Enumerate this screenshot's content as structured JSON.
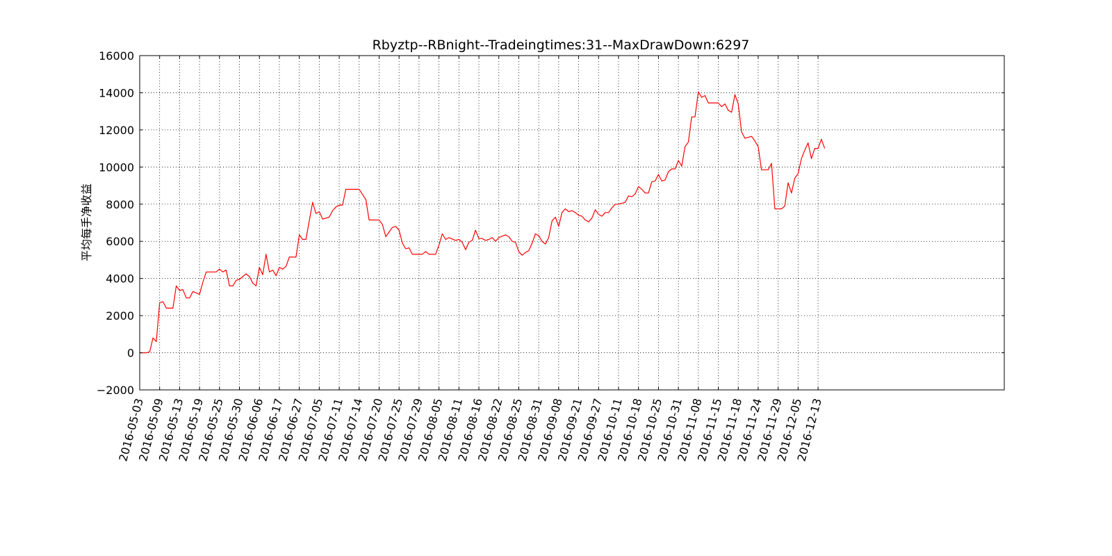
{
  "chart_data": {
    "type": "line",
    "title": "Rbyztp--RBnight--Tradeingtimes:31--MaxDrawDown:6297",
    "xlabel": "",
    "ylabel": "平均每手净收益",
    "ylim": [
      -2000,
      16000
    ],
    "yticks": [
      -2000,
      0,
      2000,
      4000,
      6000,
      8000,
      10000,
      12000,
      14000,
      16000
    ],
    "ytick_labels": [
      "−2000",
      "0",
      "2000",
      "4000",
      "6000",
      "8000",
      "10000",
      "12000",
      "14000",
      "16000"
    ],
    "x_count": 260,
    "xlim": [
      0,
      260
    ],
    "xtick_labels": [
      "2016-05-03",
      "2016-05-09",
      "2016-05-13",
      "2016-05-19",
      "2016-05-25",
      "2016-05-30",
      "2016-06-06",
      "2016-06-17",
      "2016-06-27",
      "2016-07-05",
      "2016-07-11",
      "2016-07-14",
      "2016-07-20",
      "2016-07-25",
      "2016-07-29",
      "2016-08-05",
      "2016-08-11",
      "2016-08-16",
      "2016-08-22",
      "2016-08-25",
      "2016-08-31",
      "2016-09-08",
      "2016-09-21",
      "2016-09-27",
      "2016-10-11",
      "2016-10-18",
      "2016-10-25",
      "2016-10-31",
      "2016-11-08",
      "2016-11-15",
      "2016-11-18",
      "2016-11-24",
      "2016-11-29",
      "2016-12-05",
      "2016-12-13"
    ],
    "grid": true,
    "color": "#ff0000",
    "series": [
      {
        "points": [
          [
            0,
            0
          ],
          [
            2,
            0
          ],
          [
            3,
            50
          ],
          [
            4,
            800
          ],
          [
            5,
            600
          ],
          [
            6,
            2700
          ],
          [
            7,
            2750
          ],
          [
            8,
            2400
          ],
          [
            10,
            2400
          ],
          [
            11,
            3600
          ],
          [
            12,
            3350
          ],
          [
            13,
            3400
          ],
          [
            14,
            2950
          ],
          [
            15,
            2950
          ],
          [
            16,
            3300
          ],
          [
            18,
            3150
          ],
          [
            19,
            3800
          ],
          [
            20,
            4350
          ],
          [
            23,
            4350
          ],
          [
            24,
            4500
          ],
          [
            25,
            4350
          ],
          [
            26,
            4450
          ],
          [
            27,
            3600
          ],
          [
            28,
            3600
          ],
          [
            29,
            3900
          ],
          [
            30,
            3950
          ],
          [
            31,
            4100
          ],
          [
            32,
            4250
          ],
          [
            33,
            4100
          ],
          [
            34,
            3750
          ],
          [
            35,
            3600
          ],
          [
            36,
            4600
          ],
          [
            37,
            4200
          ],
          [
            38,
            5300
          ],
          [
            39,
            4350
          ],
          [
            40,
            4450
          ],
          [
            41,
            4150
          ],
          [
            42,
            4600
          ],
          [
            43,
            4500
          ],
          [
            44,
            4650
          ],
          [
            45,
            5150
          ],
          [
            47,
            5150
          ],
          [
            48,
            6350
          ],
          [
            49,
            6100
          ],
          [
            50,
            6100
          ],
          [
            52,
            8100
          ],
          [
            53,
            7500
          ],
          [
            54,
            7600
          ],
          [
            55,
            7200
          ],
          [
            57,
            7300
          ],
          [
            58,
            7650
          ],
          [
            59,
            7850
          ],
          [
            60,
            7950
          ],
          [
            61,
            7950
          ],
          [
            62,
            8800
          ],
          [
            66,
            8800
          ],
          [
            68,
            8250
          ],
          [
            69,
            7150
          ],
          [
            72,
            7150
          ],
          [
            73,
            6900
          ],
          [
            74,
            6250
          ],
          [
            75,
            6500
          ],
          [
            76,
            6750
          ],
          [
            77,
            6800
          ],
          [
            78,
            6600
          ],
          [
            79,
            5900
          ],
          [
            80,
            5600
          ],
          [
            81,
            5650
          ],
          [
            82,
            5300
          ],
          [
            85,
            5300
          ],
          [
            86,
            5450
          ],
          [
            87,
            5300
          ],
          [
            89,
            5300
          ],
          [
            90,
            5800
          ],
          [
            91,
            6400
          ],
          [
            92,
            6100
          ],
          [
            93,
            6200
          ],
          [
            95,
            6050
          ],
          [
            96,
            6100
          ],
          [
            97,
            5950
          ],
          [
            98,
            5550
          ],
          [
            99,
            5950
          ],
          [
            100,
            6050
          ],
          [
            101,
            6600
          ],
          [
            102,
            6150
          ],
          [
            103,
            6150
          ],
          [
            104,
            6050
          ],
          [
            105,
            6100
          ],
          [
            106,
            6200
          ],
          [
            107,
            6000
          ],
          [
            108,
            6200
          ],
          [
            110,
            6350
          ],
          [
            111,
            6250
          ],
          [
            112,
            6000
          ],
          [
            113,
            5950
          ],
          [
            114,
            5450
          ],
          [
            115,
            5250
          ],
          [
            116,
            5400
          ],
          [
            117,
            5500
          ],
          [
            118,
            5900
          ],
          [
            119,
            6400
          ],
          [
            120,
            6300
          ],
          [
            121,
            6000
          ],
          [
            122,
            5850
          ],
          [
            123,
            6200
          ],
          [
            124,
            7100
          ],
          [
            125,
            7300
          ],
          [
            126,
            6800
          ],
          [
            127,
            7550
          ],
          [
            128,
            7750
          ],
          [
            129,
            7600
          ],
          [
            130,
            7650
          ],
          [
            131,
            7550
          ],
          [
            132,
            7400
          ],
          [
            133,
            7350
          ],
          [
            134,
            7150
          ],
          [
            135,
            7050
          ],
          [
            136,
            7250
          ],
          [
            137,
            7700
          ],
          [
            138,
            7450
          ],
          [
            139,
            7350
          ],
          [
            140,
            7550
          ],
          [
            141,
            7550
          ],
          [
            142,
            7800
          ],
          [
            143,
            8000
          ],
          [
            144,
            8000
          ],
          [
            145,
            8050
          ],
          [
            146,
            8100
          ],
          [
            147,
            8450
          ],
          [
            148,
            8400
          ],
          [
            149,
            8550
          ],
          [
            150,
            8950
          ],
          [
            151,
            8800
          ],
          [
            152,
            8600
          ],
          [
            153,
            8600
          ],
          [
            154,
            9200
          ],
          [
            155,
            9250
          ],
          [
            156,
            9600
          ],
          [
            157,
            9250
          ],
          [
            158,
            9300
          ],
          [
            159,
            9750
          ],
          [
            160,
            9900
          ],
          [
            161,
            9900
          ],
          [
            162,
            10350
          ],
          [
            163,
            10050
          ],
          [
            164,
            11100
          ],
          [
            165,
            11350
          ],
          [
            166,
            12700
          ],
          [
            167,
            12700
          ],
          [
            168,
            14050
          ],
          [
            169,
            13750
          ],
          [
            170,
            13850
          ],
          [
            171,
            13450
          ],
          [
            174,
            13450
          ],
          [
            175,
            13250
          ],
          [
            176,
            13400
          ],
          [
            177,
            13050
          ],
          [
            178,
            12950
          ],
          [
            179,
            13900
          ],
          [
            180,
            13400
          ],
          [
            181,
            11900
          ],
          [
            182,
            11550
          ],
          [
            183,
            11600
          ],
          [
            184,
            11650
          ],
          [
            185,
            11400
          ],
          [
            186,
            11100
          ],
          [
            187,
            9850
          ],
          [
            189,
            9850
          ],
          [
            190,
            10200
          ],
          [
            191,
            7750
          ],
          [
            193,
            7750
          ],
          [
            194,
            7900
          ],
          [
            195,
            9150
          ],
          [
            196,
            8600
          ],
          [
            197,
            9400
          ],
          [
            198,
            9650
          ],
          [
            199,
            10450
          ],
          [
            200,
            10900
          ],
          [
            201,
            11300
          ],
          [
            202,
            10450
          ],
          [
            203,
            11000
          ],
          [
            204,
            11000
          ],
          [
            205,
            11500
          ],
          [
            206,
            11000
          ]
        ]
      }
    ]
  }
}
